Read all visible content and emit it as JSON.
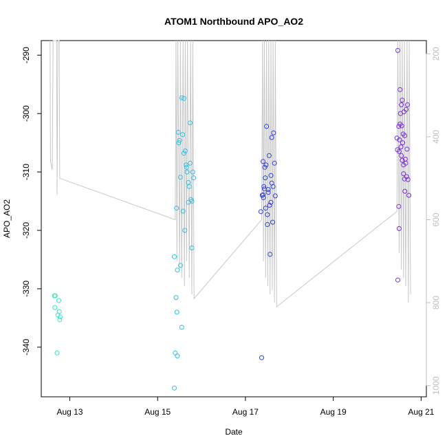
{
  "chart_data": {
    "type": "scatter",
    "title": "ATOM1 Northbound APO_AO2",
    "xlabel": "Date",
    "ylabel": "APO_AO2",
    "x_ticks": [
      "Aug 13",
      "Aug 15",
      "Aug 17",
      "Aug 19",
      "Aug 21"
    ],
    "y_ticks": [
      -290,
      -300,
      -310,
      -320,
      -330,
      -340
    ],
    "y_right_ticks": [
      200,
      400,
      600,
      800,
      1000
    ],
    "xlim": [
      12.35,
      21.12
    ],
    "ylim": [
      -348.5,
      -287.5
    ],
    "y_right_lim": [
      1027,
      168
    ],
    "grid": false,
    "colors": {
      "line": "#c8c8c8",
      "right_axis": "#bfbfbf",
      "series_aug12": "#33e6c9",
      "series_aug15": "#2fbfe6",
      "series_aug17": "#2e3fe0",
      "series_aug20": "#7a2be6"
    },
    "series": [
      {
        "color_key": "series_aug12",
        "points": [
          [
            12.65,
            -331.2
          ],
          [
            12.67,
            -331.2
          ],
          [
            12.66,
            -333.2
          ],
          [
            12.73,
            -334.5
          ],
          [
            12.76,
            -333.9
          ],
          [
            12.77,
            -335.3
          ],
          [
            12.75,
            -332.0
          ],
          [
            12.71,
            -341.0
          ],
          [
            12.78,
            -334.8
          ]
        ]
      },
      {
        "color_key": "series_aug15",
        "points": [
          [
            15.38,
            -324.5
          ],
          [
            15.43,
            -316.2
          ],
          [
            15.47,
            -303.2
          ],
          [
            15.5,
            -304.6
          ],
          [
            15.52,
            -326.0
          ],
          [
            15.55,
            -297.3
          ],
          [
            15.57,
            -303.6
          ],
          [
            15.6,
            -297.4
          ],
          [
            15.63,
            -306.4
          ],
          [
            15.65,
            -308.8
          ],
          [
            15.67,
            -310.0
          ],
          [
            15.7,
            -311.8
          ],
          [
            15.72,
            -312.5
          ],
          [
            15.74,
            -301.6
          ],
          [
            15.76,
            -314.7
          ],
          [
            15.78,
            -315.0
          ],
          [
            15.8,
            -310.0
          ],
          [
            15.82,
            -311.0
          ],
          [
            15.78,
            -323.0
          ],
          [
            15.52,
            -310.9
          ],
          [
            15.58,
            -316.7
          ],
          [
            15.62,
            -320.0
          ],
          [
            15.45,
            -326.8
          ],
          [
            15.42,
            -331.5
          ],
          [
            15.44,
            -334.0
          ],
          [
            15.55,
            -336.6
          ],
          [
            15.4,
            -341.0
          ],
          [
            15.45,
            -341.5
          ],
          [
            15.38,
            -347.0
          ],
          [
            15.48,
            -305.0
          ],
          [
            15.66,
            -309.2
          ],
          [
            15.7,
            -315.2
          ],
          [
            15.6,
            -306.8
          ],
          [
            15.74,
            -308.5
          ]
        ]
      },
      {
        "color_key": "series_aug17",
        "points": [
          [
            17.35,
            -316.8
          ],
          [
            17.38,
            -314.0
          ],
          [
            17.4,
            -308.2
          ],
          [
            17.42,
            -312.5
          ],
          [
            17.44,
            -309.2
          ],
          [
            17.46,
            -316.2
          ],
          [
            17.48,
            -302.2
          ],
          [
            17.5,
            -319.0
          ],
          [
            17.52,
            -313.0
          ],
          [
            17.54,
            -307.2
          ],
          [
            17.56,
            -324.1
          ],
          [
            17.58,
            -310.6
          ],
          [
            17.6,
            -304.1
          ],
          [
            17.62,
            -318.6
          ],
          [
            17.64,
            -303.3
          ],
          [
            17.66,
            -308.5
          ],
          [
            17.68,
            -314.1
          ],
          [
            17.45,
            -311.0
          ],
          [
            17.5,
            -317.3
          ],
          [
            17.55,
            -315.7
          ],
          [
            17.4,
            -313.9
          ],
          [
            17.43,
            -312.9
          ],
          [
            17.6,
            -311.9
          ],
          [
            17.63,
            -312.5
          ],
          [
            17.58,
            -315.2
          ],
          [
            17.47,
            -308.8
          ],
          [
            17.37,
            -341.8
          ],
          [
            17.52,
            -313.5
          ],
          [
            17.41,
            -314.4
          ]
        ]
      },
      {
        "color_key": "series_aug20",
        "points": [
          [
            20.45,
            -304.2
          ],
          [
            20.47,
            -289.2
          ],
          [
            20.49,
            -302.2
          ],
          [
            20.5,
            -306.5
          ],
          [
            20.51,
            -304.5
          ],
          [
            20.52,
            -295.9
          ],
          [
            20.53,
            -300.0
          ],
          [
            20.54,
            -305.7
          ],
          [
            20.55,
            -298.5
          ],
          [
            20.56,
            -302.1
          ],
          [
            20.57,
            -308.0
          ],
          [
            20.58,
            -305.0
          ],
          [
            20.59,
            -303.5
          ],
          [
            20.6,
            -310.3
          ],
          [
            20.61,
            -299.7
          ],
          [
            20.62,
            -311.2
          ],
          [
            20.63,
            -303.8
          ],
          [
            20.64,
            -307.8
          ],
          [
            20.65,
            -308.5
          ],
          [
            20.66,
            -299.3
          ],
          [
            20.67,
            -310.8
          ],
          [
            20.68,
            -306.1
          ],
          [
            20.69,
            -298.5
          ],
          [
            20.7,
            -311.3
          ],
          [
            20.72,
            -314.0
          ],
          [
            20.5,
            -319.7
          ],
          [
            20.47,
            -328.5
          ],
          [
            20.49,
            -315.9
          ],
          [
            20.55,
            -307.2
          ],
          [
            20.6,
            -308.8
          ],
          [
            20.52,
            -301.8
          ],
          [
            20.57,
            -297.7
          ],
          [
            20.63,
            -313.3
          ],
          [
            20.46,
            -306.2
          ]
        ]
      }
    ],
    "line_series": {
      "color_key": "line",
      "points": [
        [
          12.55,
          168
        ],
        [
          12.56,
          460
        ],
        [
          12.6,
          480
        ],
        [
          12.62,
          168
        ],
        [
          12.7,
          168
        ],
        [
          12.71,
          540
        ],
        [
          12.73,
          168
        ],
        [
          12.76,
          168
        ],
        [
          12.77,
          500
        ],
        [
          15.4,
          600
        ],
        [
          15.42,
          168
        ],
        [
          15.44,
          700
        ],
        [
          15.46,
          168
        ],
        [
          15.5,
          720
        ],
        [
          15.52,
          168
        ],
        [
          15.55,
          740
        ],
        [
          15.58,
          168
        ],
        [
          15.61,
          760
        ],
        [
          15.63,
          168
        ],
        [
          15.66,
          700
        ],
        [
          15.68,
          168
        ],
        [
          15.72,
          740
        ],
        [
          15.75,
          168
        ],
        [
          15.78,
          780
        ],
        [
          15.8,
          168
        ],
        [
          15.83,
          790
        ],
        [
          17.37,
          600
        ],
        [
          17.39,
          168
        ],
        [
          17.41,
          700
        ],
        [
          17.43,
          168
        ],
        [
          17.46,
          740
        ],
        [
          17.48,
          168
        ],
        [
          17.51,
          760
        ],
        [
          17.53,
          168
        ],
        [
          17.56,
          780
        ],
        [
          17.58,
          168
        ],
        [
          17.61,
          770
        ],
        [
          17.63,
          168
        ],
        [
          17.66,
          800
        ],
        [
          17.68,
          168
        ],
        [
          17.71,
          810
        ],
        [
          20.45,
          580
        ],
        [
          20.47,
          168
        ],
        [
          20.5,
          680
        ],
        [
          20.52,
          168
        ],
        [
          20.55,
          720
        ],
        [
          20.57,
          168
        ],
        [
          20.6,
          740
        ],
        [
          20.62,
          168
        ],
        [
          20.65,
          760
        ],
        [
          20.68,
          168
        ],
        [
          20.71,
          800
        ],
        [
          20.73,
          168
        ],
        [
          20.76,
          780
        ]
      ]
    }
  }
}
